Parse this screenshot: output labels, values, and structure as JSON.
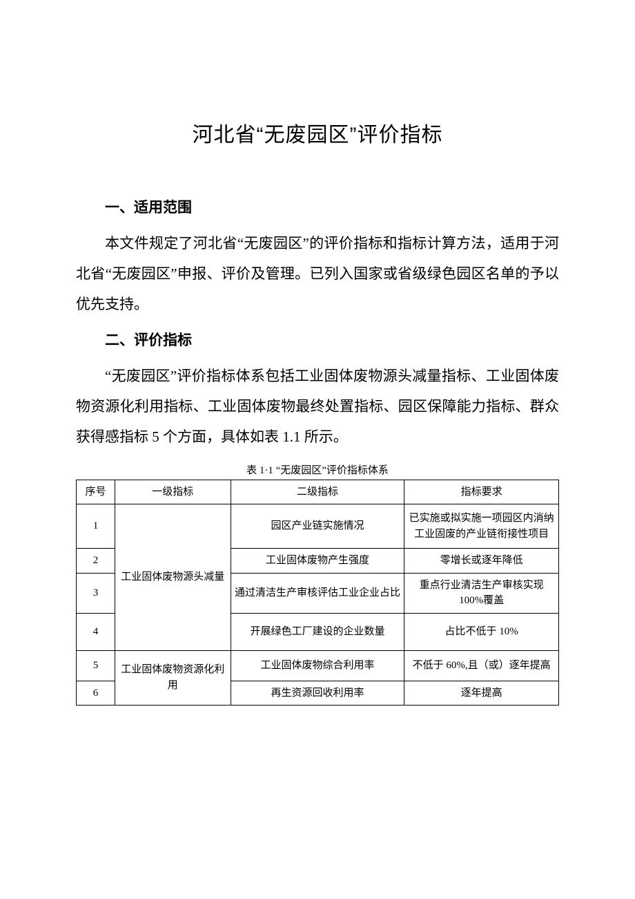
{
  "title": "河北省“无废园区”评价指标",
  "section1": {
    "heading": "一、适用范围",
    "para": "本文件规定了河北省“无废园区”的评价指标和指标计算方法，适用于河北省“无废园区”申报、评价及管理。已列入国家或省级绿色园区名单的予以优先支持。"
  },
  "section2": {
    "heading": "二、评价指标",
    "para": "“无废园区”评价指标体系包括工业固体废物源头减量指标、工业固体废物资源化利用指标、工业固体废物最终处置指标、园区保障能力指标、群众获得感指标 5 个方面，具体如表 1.1 所示。"
  },
  "table": {
    "caption": "表 1·1 “无废园区”评价指标体系",
    "headers": {
      "seq": "序号",
      "level1": "一级指标",
      "level2": "二级指标",
      "requirement": "指标要求"
    },
    "groups": [
      {
        "level1": "工业固体废物源头减量",
        "rows": [
          {
            "seq": "1",
            "level2": "园区产业链实施情况",
            "req": "已实施或拟实施一项园区内消纳工业固废的产业链衔接性项目"
          },
          {
            "seq": "2",
            "level2": "工业固体废物产生强度",
            "req": "零增长或逐年降低"
          },
          {
            "seq": "3",
            "level2": "通过清洁生产审核评估工业企业占比",
            "req": "重点行业清洁生产审核实现 100%覆盖"
          },
          {
            "seq": "4",
            "level2": "开展绿色工厂建设的企业数量",
            "req": "占比不低于 10%"
          }
        ]
      },
      {
        "level1": "工业固体废物资源化利用",
        "rows": [
          {
            "seq": "5",
            "level2": "工业固体废物综合利用率",
            "req": "不低于 60%,且（或）逐年提高"
          },
          {
            "seq": "6",
            "level2": "再生资源回收利用率",
            "req": "逐年提高"
          }
        ]
      }
    ]
  },
  "row_heights": {
    "header": 30,
    "r1": 64,
    "r2": 32,
    "r3": 48,
    "r4": 54,
    "r5": 44,
    "r6": 30
  }
}
